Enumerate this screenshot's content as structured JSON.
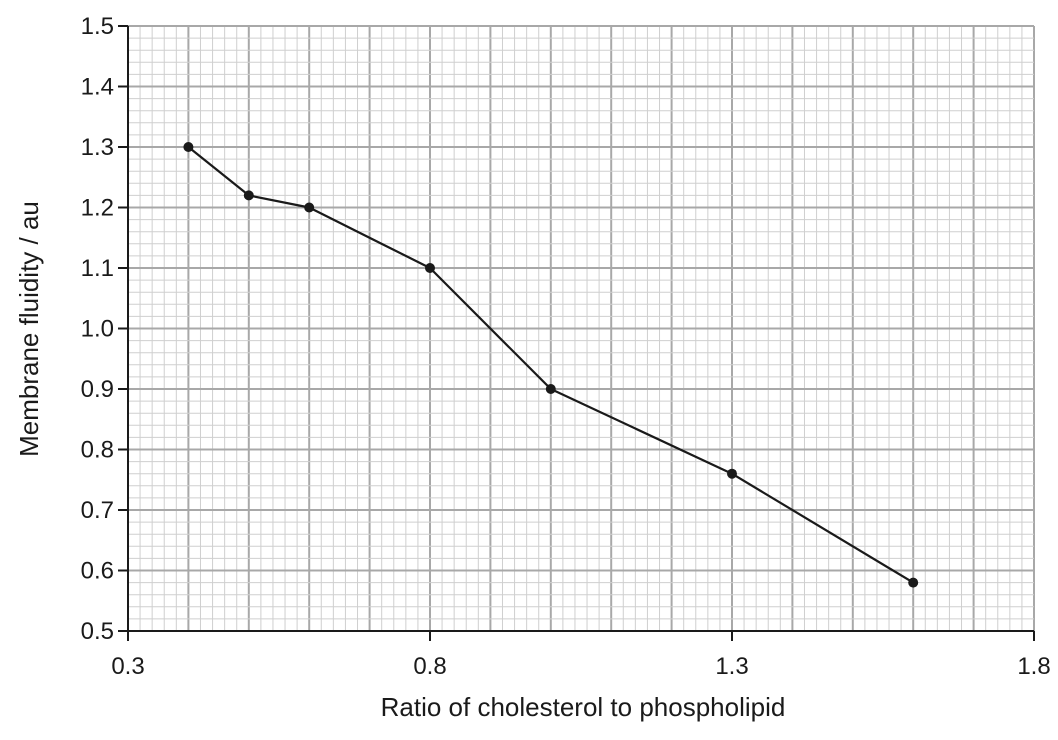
{
  "chart_data": {
    "type": "line",
    "title": "",
    "xlabel": "Ratio of cholesterol to phospholipid",
    "ylabel": "Membrane fluidity / au",
    "xlim": [
      0.3,
      1.8
    ],
    "ylim": [
      0.5,
      1.5
    ],
    "x_ticks": [
      "0.3",
      "0.8",
      "1.3",
      "1.8"
    ],
    "y_ticks": [
      "0.5",
      "0.6",
      "0.7",
      "0.8",
      "0.9",
      "1.0",
      "1.1",
      "1.2",
      "1.3",
      "1.4",
      "1.5"
    ],
    "grid": true,
    "x": [
      0.4,
      0.5,
      0.6,
      0.8,
      1.0,
      1.3,
      1.6
    ],
    "y": [
      1.3,
      1.22,
      1.2,
      1.1,
      0.9,
      0.76,
      0.58
    ],
    "colors": {
      "line": "#1a1a1a",
      "grid_minor": "#cfcfcf",
      "grid_major": "#a8a8a8",
      "axis": "#1a1a1a"
    }
  }
}
